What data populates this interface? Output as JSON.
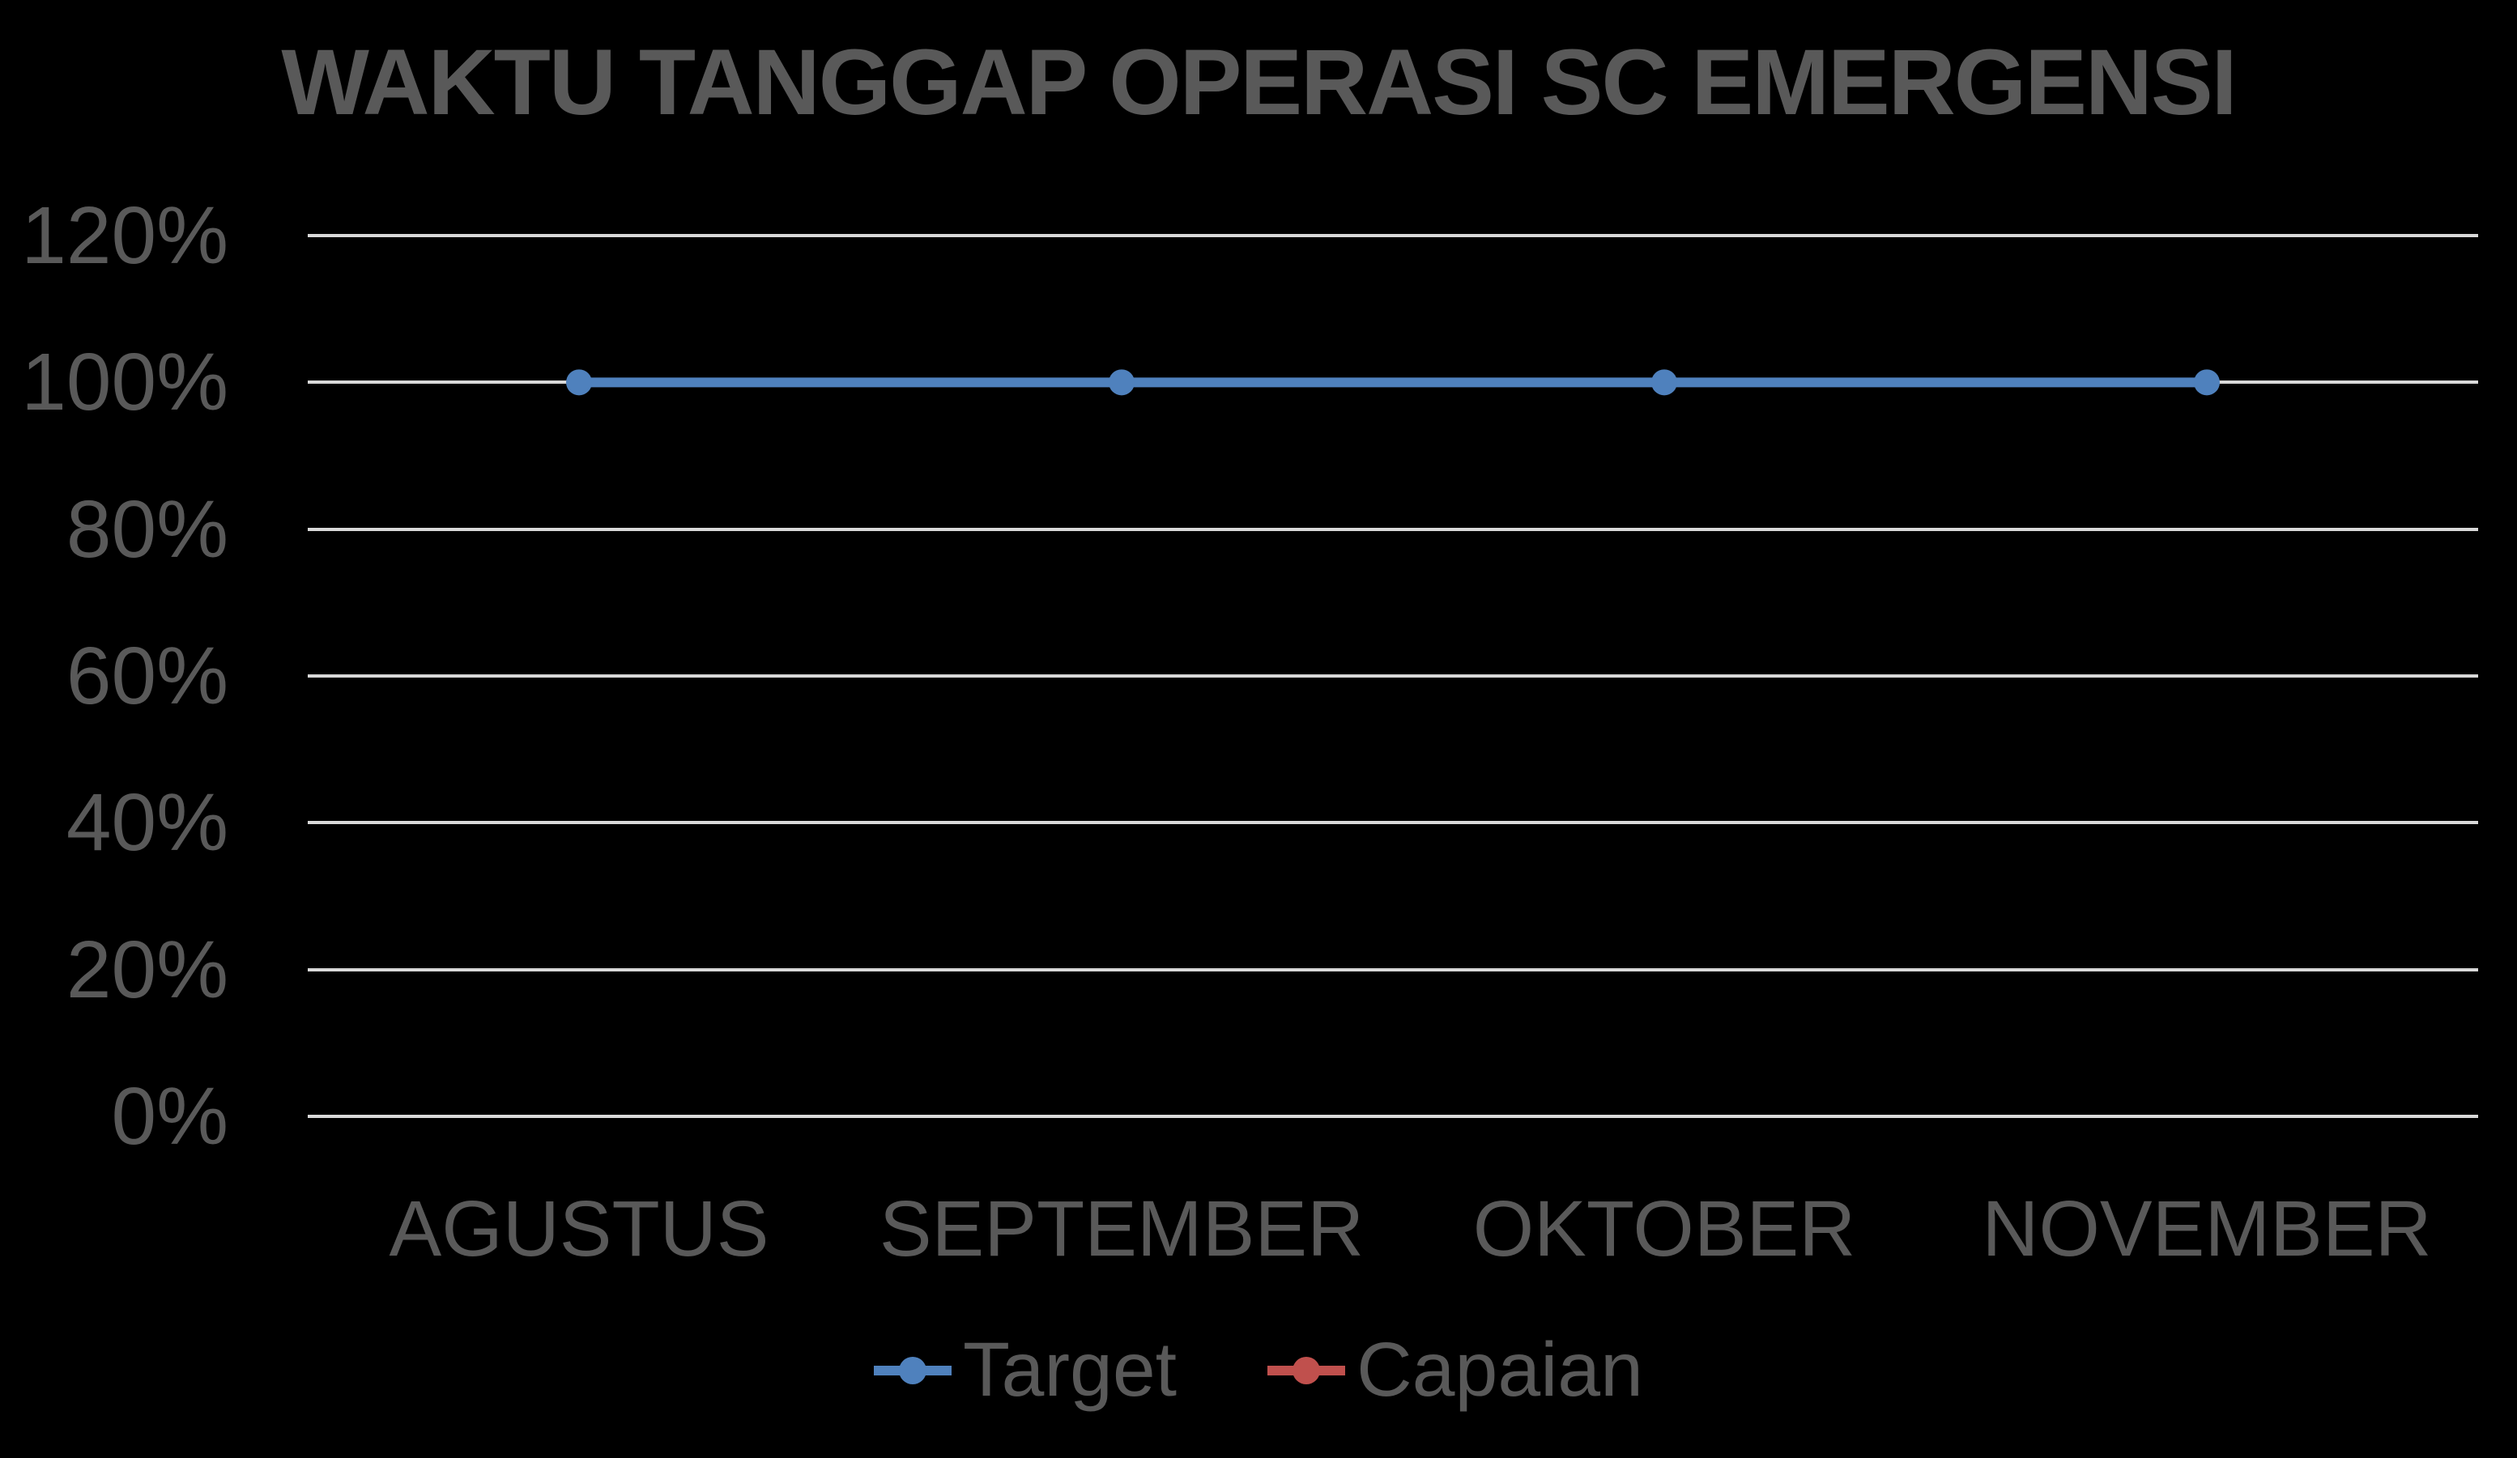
{
  "chart_data": {
    "type": "line",
    "title": "WAKTU TANGGAP OPERASI SC EMERGENSI",
    "categories": [
      "AGUSTUS",
      "SEPTEMBER",
      "OKTOBER",
      "NOVEMBER"
    ],
    "series": [
      {
        "name": "Target",
        "color": "#4F81BD",
        "values": [
          1.0,
          1.0,
          1.0,
          1.0
        ],
        "values_percent": [
          "100%",
          "100%",
          "100%",
          "100%"
        ],
        "marker": "circle",
        "plotted": true
      },
      {
        "name": "Capaian",
        "color": "#C0504D",
        "values": [
          null,
          null,
          null,
          null
        ],
        "values_percent": [],
        "marker": "circle",
        "plotted": false
      }
    ],
    "xlabel": "",
    "ylabel": "",
    "ylim": [
      0,
      1.2
    ],
    "yticks": [
      "0%",
      "20%",
      "40%",
      "60%",
      "80%",
      "100%",
      "120%"
    ],
    "ytick_values": [
      0,
      0.2,
      0.4,
      0.6,
      0.8,
      1.0,
      1.2
    ],
    "grid": "horizontal",
    "legend_position": "bottom",
    "colors": {
      "background": "#000000",
      "text": "#595959",
      "gridline": "#D9D9D9",
      "accent_blue": "#4F81BD",
      "accent_red": "#C0504D"
    }
  }
}
